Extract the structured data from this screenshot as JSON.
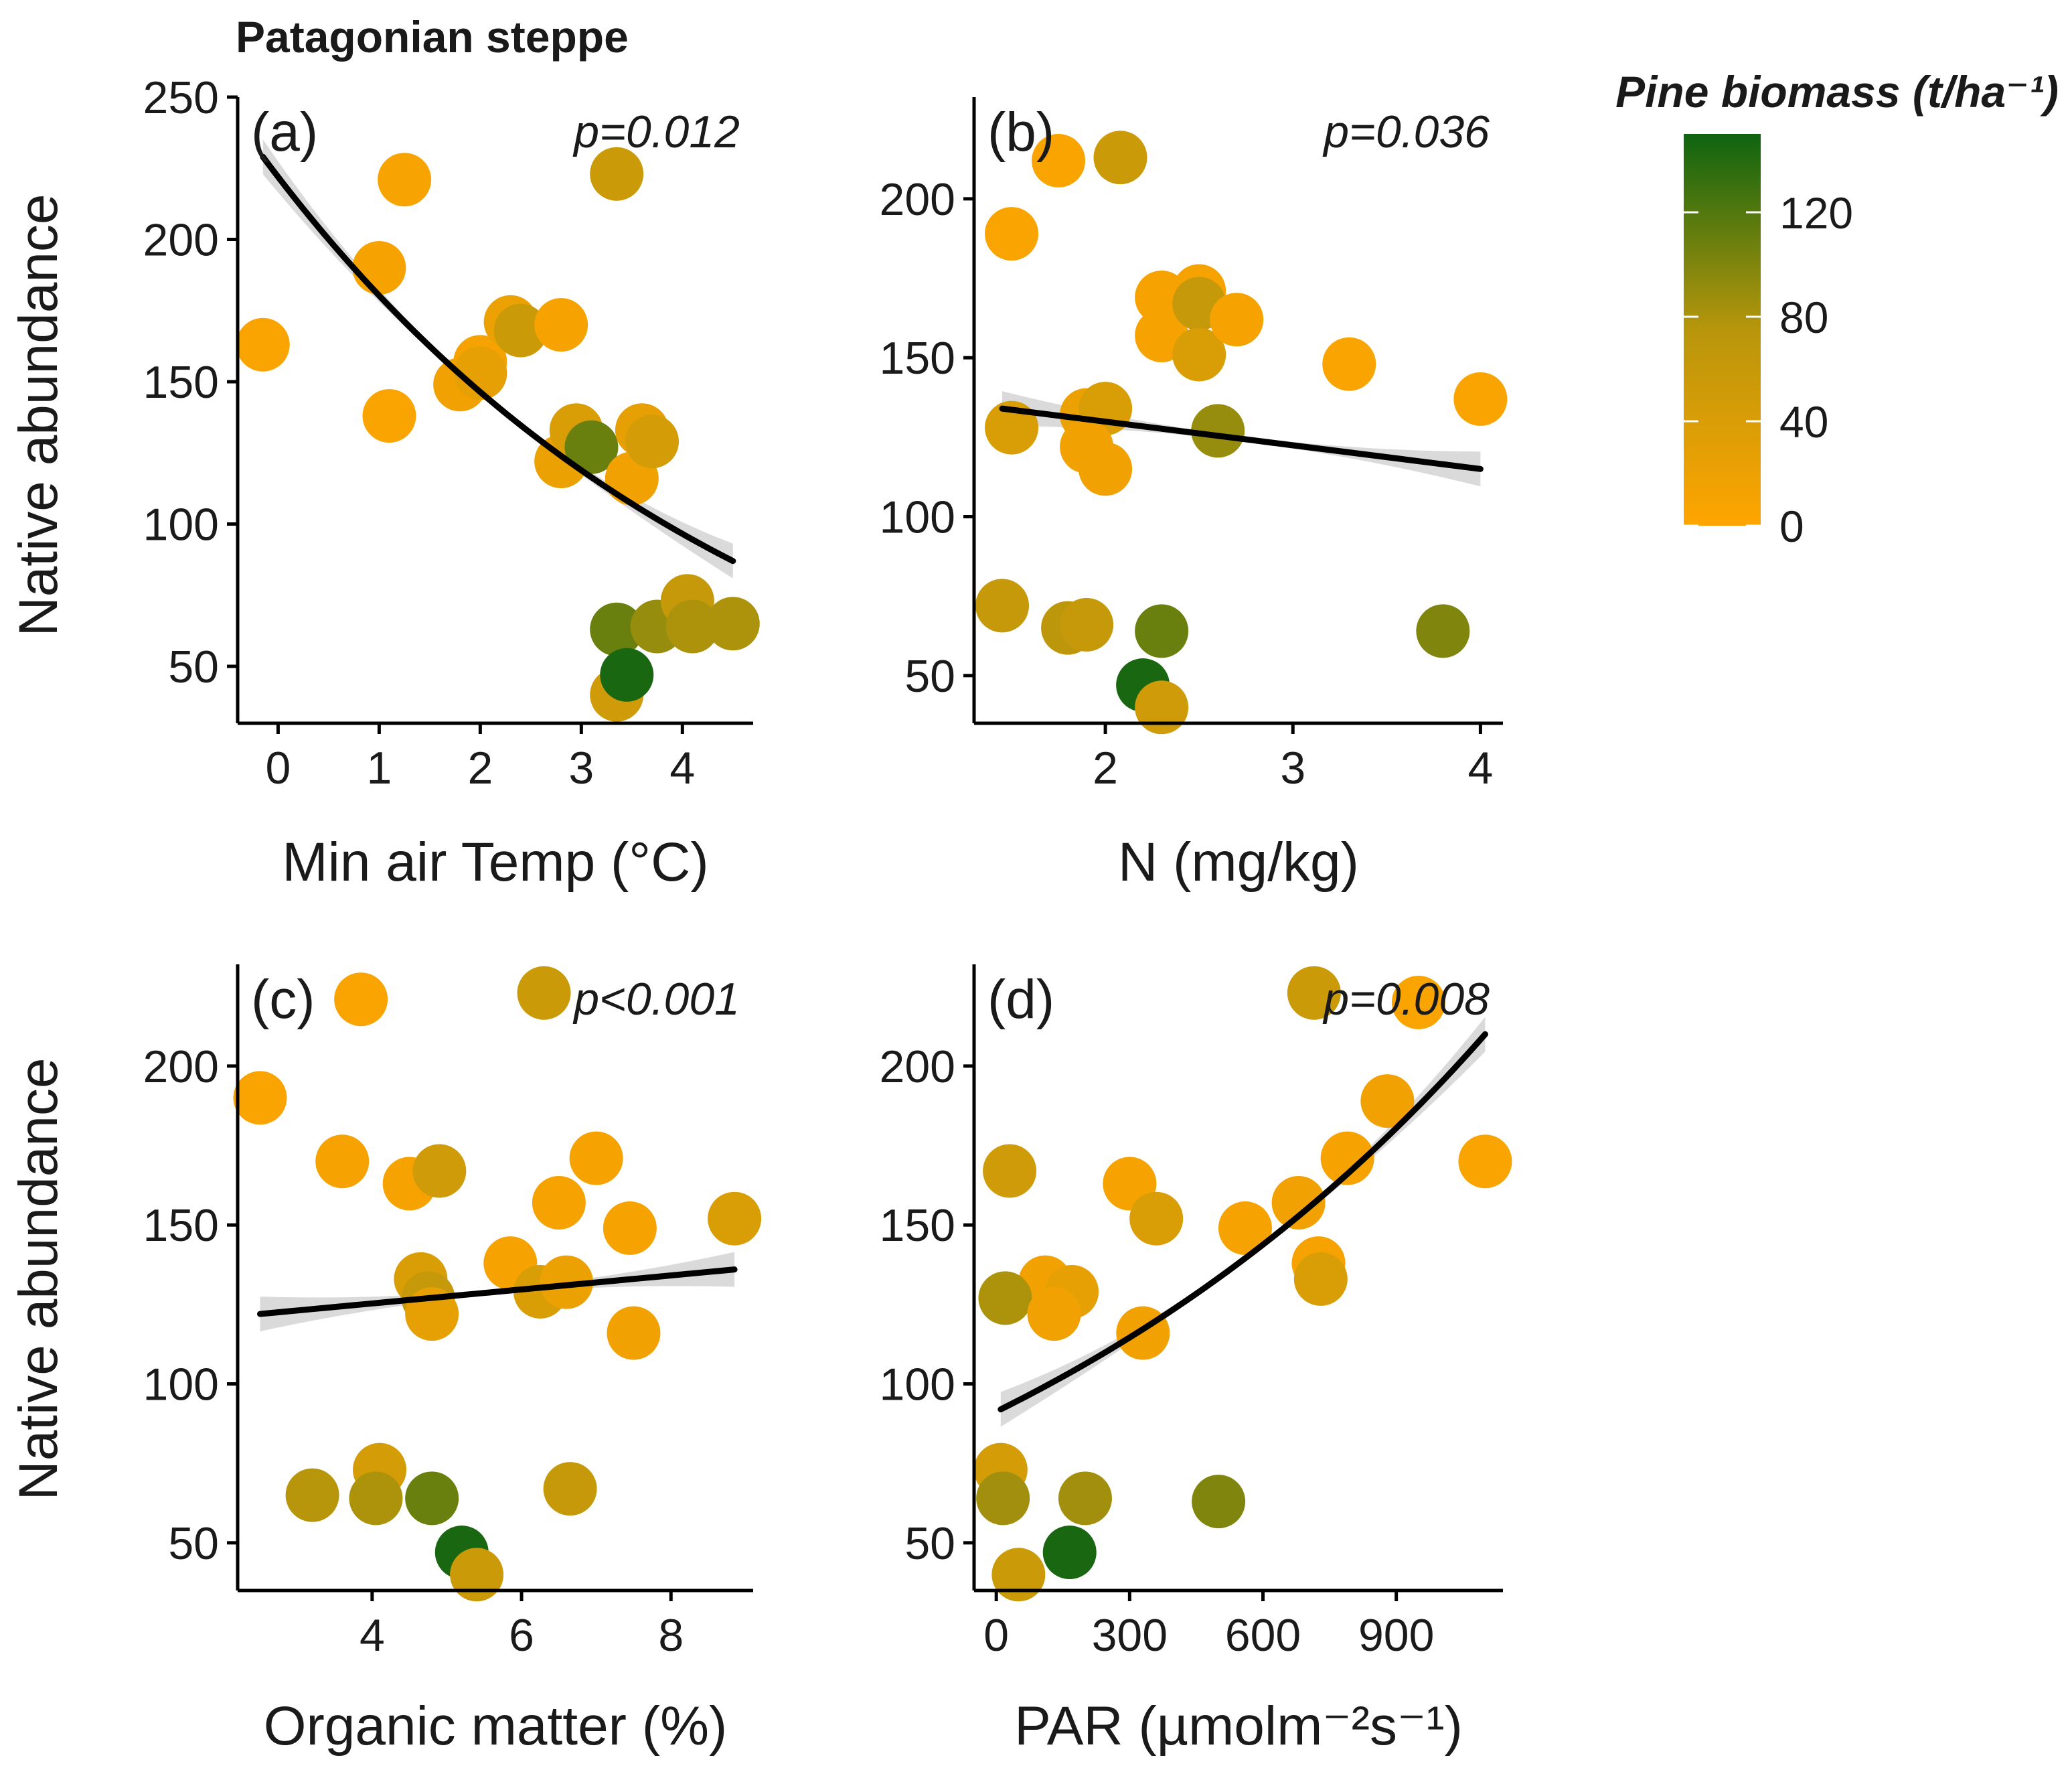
{
  "title": "Patagonian steppe",
  "legend": {
    "title": "Pine biomass (t/ha⁻¹)",
    "ticks": [
      0,
      40,
      80,
      120
    ],
    "range": [
      0,
      150
    ],
    "colors": {
      "low": "#FFA500",
      "mid": "#B8960C",
      "high": "#0E6410"
    }
  },
  "fit_line_color": "#000000",
  "ci_band_color": "#D3D3D3",
  "chart_data": [
    {
      "type": "scatter",
      "label": "(a)",
      "p_value": "p=0.012",
      "xlabel": "Min air Temp (°C)",
      "ylabel": "Native abundance",
      "xlim": [
        -0.4,
        4.7
      ],
      "ylim": [
        30,
        250
      ],
      "xticks": [
        0,
        1,
        2,
        3,
        4
      ],
      "yticks": [
        50,
        100,
        150,
        200,
        250
      ],
      "points": [
        {
          "x": -0.15,
          "y": 163,
          "b": 5
        },
        {
          "x": 1.0,
          "y": 190,
          "b": 10
        },
        {
          "x": 1.25,
          "y": 221,
          "b": 8
        },
        {
          "x": 1.1,
          "y": 138,
          "b": 5
        },
        {
          "x": 1.8,
          "y": 149,
          "b": 15
        },
        {
          "x": 2.0,
          "y": 157,
          "b": 10
        },
        {
          "x": 2.0,
          "y": 153,
          "b": 25
        },
        {
          "x": 2.3,
          "y": 171,
          "b": 20
        },
        {
          "x": 2.4,
          "y": 168,
          "b": 55
        },
        {
          "x": 2.8,
          "y": 170,
          "b": 10
        },
        {
          "x": 2.8,
          "y": 122,
          "b": 20
        },
        {
          "x": 2.95,
          "y": 133,
          "b": 40
        },
        {
          "x": 3.1,
          "y": 127,
          "b": 110
        },
        {
          "x": 3.35,
          "y": 223,
          "b": 55
        },
        {
          "x": 3.5,
          "y": 116,
          "b": 15
        },
        {
          "x": 3.6,
          "y": 133,
          "b": 25
        },
        {
          "x": 3.7,
          "y": 129,
          "b": 45
        },
        {
          "x": 3.35,
          "y": 63,
          "b": 110
        },
        {
          "x": 3.35,
          "y": 40,
          "b": 50
        },
        {
          "x": 3.45,
          "y": 47,
          "b": 145
        },
        {
          "x": 3.75,
          "y": 64,
          "b": 90
        },
        {
          "x": 4.05,
          "y": 73,
          "b": 60
        },
        {
          "x": 4.1,
          "y": 64,
          "b": 80
        },
        {
          "x": 4.5,
          "y": 65,
          "b": 80
        }
      ],
      "fit": {
        "type": "exp",
        "x": [
          -0.15,
          4.5
        ],
        "y": [
          229,
          87
        ]
      }
    },
    {
      "type": "scatter",
      "label": "(b)",
      "p_value": "p=0.036",
      "xlabel": "N (mg/kg)",
      "ylabel": "",
      "xlim": [
        1.3,
        4.12
      ],
      "ylim": [
        35,
        232
      ],
      "xticks": [
        2,
        3,
        4
      ],
      "yticks": [
        50,
        100,
        150,
        200
      ],
      "points": [
        {
          "x": 1.5,
          "y": 189,
          "b": 5
        },
        {
          "x": 1.75,
          "y": 212,
          "b": 5
        },
        {
          "x": 2.08,
          "y": 213,
          "b": 55
        },
        {
          "x": 2.3,
          "y": 169,
          "b": 10
        },
        {
          "x": 2.3,
          "y": 157,
          "b": 10
        },
        {
          "x": 2.5,
          "y": 171,
          "b": 10
        },
        {
          "x": 2.5,
          "y": 167,
          "b": 60
        },
        {
          "x": 2.5,
          "y": 151,
          "b": 40
        },
        {
          "x": 2.7,
          "y": 162,
          "b": 10
        },
        {
          "x": 3.3,
          "y": 148,
          "b": 5
        },
        {
          "x": 4.0,
          "y": 137,
          "b": 5
        },
        {
          "x": 1.5,
          "y": 128,
          "b": 40
        },
        {
          "x": 1.9,
          "y": 132,
          "b": 20
        },
        {
          "x": 2.0,
          "y": 134,
          "b": 40
        },
        {
          "x": 1.9,
          "y": 122,
          "b": 15
        },
        {
          "x": 2.0,
          "y": 115,
          "b": 15
        },
        {
          "x": 2.6,
          "y": 127,
          "b": 90
        },
        {
          "x": 1.45,
          "y": 72,
          "b": 60
        },
        {
          "x": 1.8,
          "y": 65,
          "b": 70
        },
        {
          "x": 1.9,
          "y": 66,
          "b": 60
        },
        {
          "x": 2.3,
          "y": 64,
          "b": 110
        },
        {
          "x": 2.2,
          "y": 47,
          "b": 145
        },
        {
          "x": 2.3,
          "y": 40,
          "b": 50
        },
        {
          "x": 3.8,
          "y": 64,
          "b": 100
        }
      ],
      "fit": {
        "type": "linear",
        "x": [
          1.45,
          4.0
        ],
        "y": [
          134,
          115
        ]
      }
    },
    {
      "type": "scatter",
      "label": "(c)",
      "p_value": "p<0.001",
      "xlabel": "Organic matter (%)",
      "ylabel": "Native abundance",
      "xlim": [
        2.2,
        9.1
      ],
      "ylim": [
        35,
        232
      ],
      "xticks": [
        4,
        6,
        8
      ],
      "yticks": [
        50,
        100,
        150,
        200
      ],
      "points": [
        {
          "x": 2.5,
          "y": 190,
          "b": 5
        },
        {
          "x": 3.85,
          "y": 221,
          "b": 5
        },
        {
          "x": 6.3,
          "y": 223,
          "b": 55
        },
        {
          "x": 3.6,
          "y": 170,
          "b": 10
        },
        {
          "x": 4.5,
          "y": 163,
          "b": 10
        },
        {
          "x": 4.9,
          "y": 167,
          "b": 50
        },
        {
          "x": 6.5,
          "y": 157,
          "b": 10
        },
        {
          "x": 7.0,
          "y": 171,
          "b": 10
        },
        {
          "x": 7.45,
          "y": 149,
          "b": 10
        },
        {
          "x": 8.85,
          "y": 152,
          "b": 40
        },
        {
          "x": 5.85,
          "y": 138,
          "b": 10
        },
        {
          "x": 4.65,
          "y": 133,
          "b": 40
        },
        {
          "x": 4.75,
          "y": 127,
          "b": 60
        },
        {
          "x": 4.8,
          "y": 122,
          "b": 25
        },
        {
          "x": 6.25,
          "y": 129,
          "b": 40
        },
        {
          "x": 6.6,
          "y": 132,
          "b": 20
        },
        {
          "x": 7.5,
          "y": 116,
          "b": 15
        },
        {
          "x": 4.1,
          "y": 73,
          "b": 45
        },
        {
          "x": 3.2,
          "y": 65,
          "b": 75
        },
        {
          "x": 4.05,
          "y": 64,
          "b": 80
        },
        {
          "x": 4.8,
          "y": 64,
          "b": 110
        },
        {
          "x": 5.2,
          "y": 47,
          "b": 145
        },
        {
          "x": 5.4,
          "y": 40,
          "b": 55
        },
        {
          "x": 6.65,
          "y": 67,
          "b": 60
        }
      ],
      "fit": {
        "type": "linear",
        "x": [
          2.5,
          8.85
        ],
        "y": [
          122,
          136
        ]
      }
    },
    {
      "type": "scatter",
      "label": "(d)",
      "p_value": "p=0.008",
      "xlabel": "PAR (µmolm⁻²s⁻¹)",
      "ylabel": "",
      "xlim": [
        -50,
        1140
      ],
      "ylim": [
        35,
        232
      ],
      "xticks": [
        0,
        300,
        600,
        900
      ],
      "yticks": [
        50,
        100,
        150,
        200
      ],
      "points": [
        {
          "x": 715,
          "y": 223,
          "b": 55
        },
        {
          "x": 950,
          "y": 220,
          "b": 5
        },
        {
          "x": 880,
          "y": 189,
          "b": 15
        },
        {
          "x": 790,
          "y": 171,
          "b": 10
        },
        {
          "x": 1100,
          "y": 170,
          "b": 5
        },
        {
          "x": 30,
          "y": 167,
          "b": 50
        },
        {
          "x": 300,
          "y": 163,
          "b": 10
        },
        {
          "x": 680,
          "y": 157,
          "b": 15
        },
        {
          "x": 360,
          "y": 152,
          "b": 40
        },
        {
          "x": 560,
          "y": 149,
          "b": 10
        },
        {
          "x": 725,
          "y": 138,
          "b": 10
        },
        {
          "x": 730,
          "y": 133,
          "b": 40
        },
        {
          "x": 110,
          "y": 132,
          "b": 15
        },
        {
          "x": 170,
          "y": 129,
          "b": 25
        },
        {
          "x": 20,
          "y": 127,
          "b": 80
        },
        {
          "x": 130,
          "y": 122,
          "b": 15
        },
        {
          "x": 330,
          "y": 116,
          "b": 15
        },
        {
          "x": 10,
          "y": 73,
          "b": 45
        },
        {
          "x": 15,
          "y": 64,
          "b": 85
        },
        {
          "x": 200,
          "y": 64,
          "b": 85
        },
        {
          "x": 500,
          "y": 63,
          "b": 100
        },
        {
          "x": 165,
          "y": 47,
          "b": 145
        },
        {
          "x": 50,
          "y": 40,
          "b": 55
        }
      ],
      "fit": {
        "type": "exp",
        "x": [
          10,
          1100
        ],
        "y": [
          92,
          210
        ]
      }
    }
  ]
}
